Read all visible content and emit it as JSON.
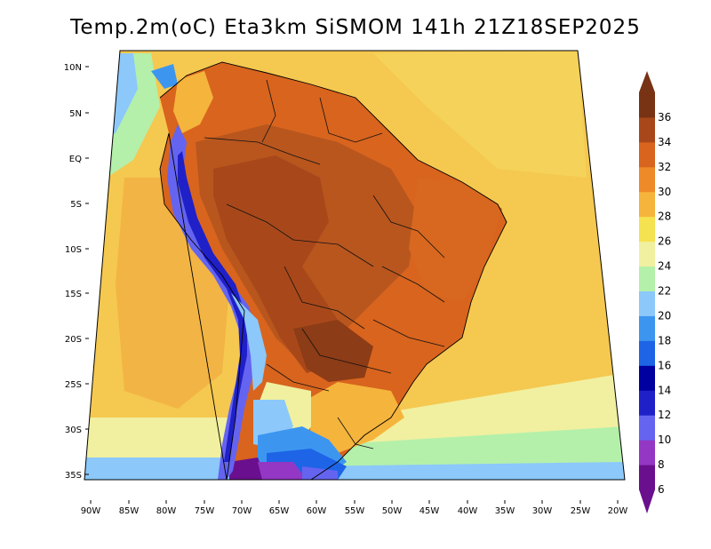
{
  "title": "Temp.2m(oC) Eta3km SiSMOM 141h 21Z18SEP2025",
  "variable": "Temp.2m",
  "units": "oC",
  "model": "Eta3km",
  "lat_labels": [
    "10N",
    "5N",
    "EQ",
    "5S",
    "10S",
    "15S",
    "20S",
    "25S",
    "30S",
    "35S"
  ],
  "lon_labels": [
    "90W",
    "85W",
    "80W",
    "75W",
    "70W",
    "65W",
    "60W",
    "55W",
    "50W",
    "45W",
    "40W",
    "35W",
    "30W",
    "25W",
    "20W"
  ],
  "colorbar": {
    "labels": [
      "6",
      "8",
      "10",
      "12",
      "14",
      "16",
      "18",
      "20",
      "22",
      "24",
      "26",
      "28",
      "30",
      "32",
      "34",
      "36"
    ],
    "colors": [
      "#6a0f8e",
      "#9437c4",
      "#6464f0",
      "#2020c8",
      "#0000a0",
      "#1e64e6",
      "#3c96f0",
      "#8cc8fa",
      "#b4f0aa",
      "#f0f0a0",
      "#f5e250",
      "#f5b43c",
      "#ee8a28",
      "#d8641e",
      "#a8481a",
      "#783214"
    ]
  }
}
